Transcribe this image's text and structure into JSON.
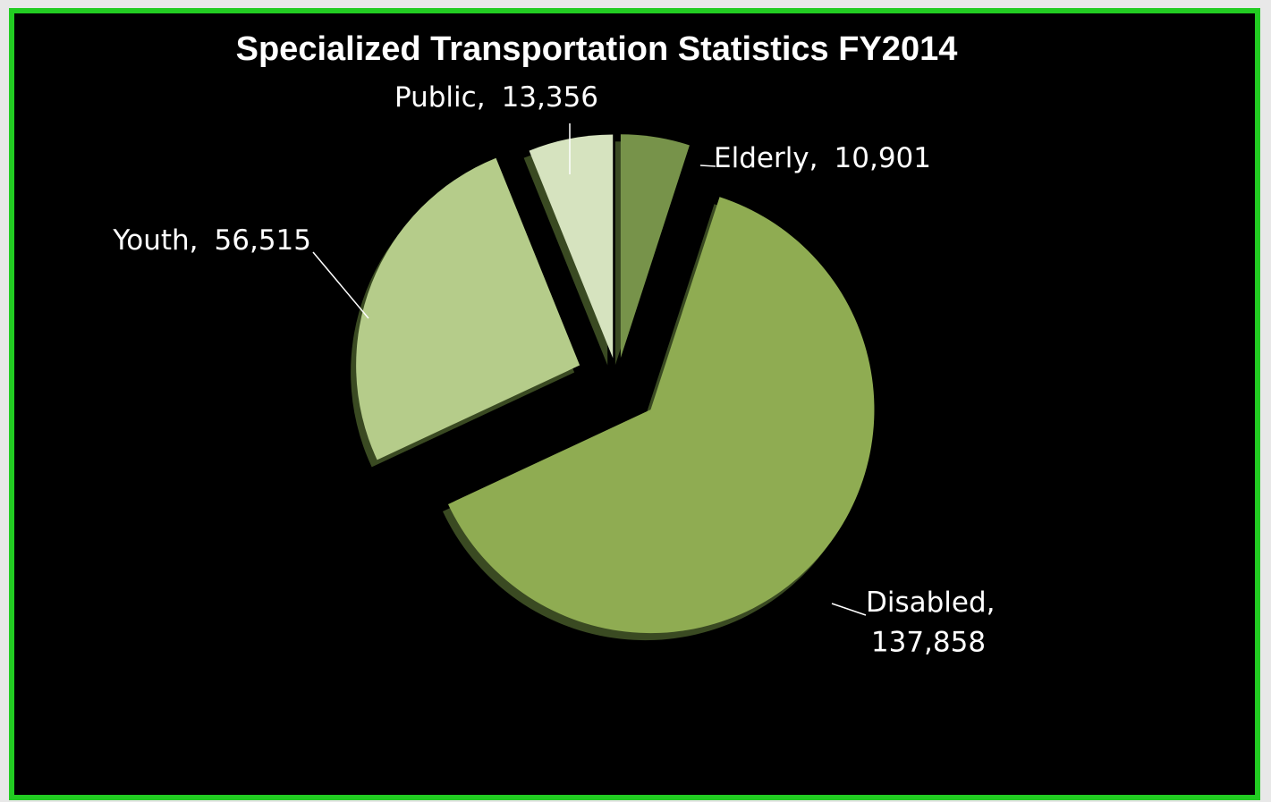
{
  "chart_data": {
    "type": "pie",
    "title": "Specialized Transportation Statistics FY2014",
    "categories": [
      "Elderly",
      "Disabled",
      "Youth",
      "Public"
    ],
    "values": [
      10901,
      137858,
      56515,
      13356
    ],
    "value_labels": [
      "10,901",
      "137,858",
      "56,515",
      "13,356"
    ],
    "label_separator": ",",
    "colors": [
      "#77934a",
      "#8fac52",
      "#b5cc8a",
      "#d6e3bf"
    ]
  }
}
